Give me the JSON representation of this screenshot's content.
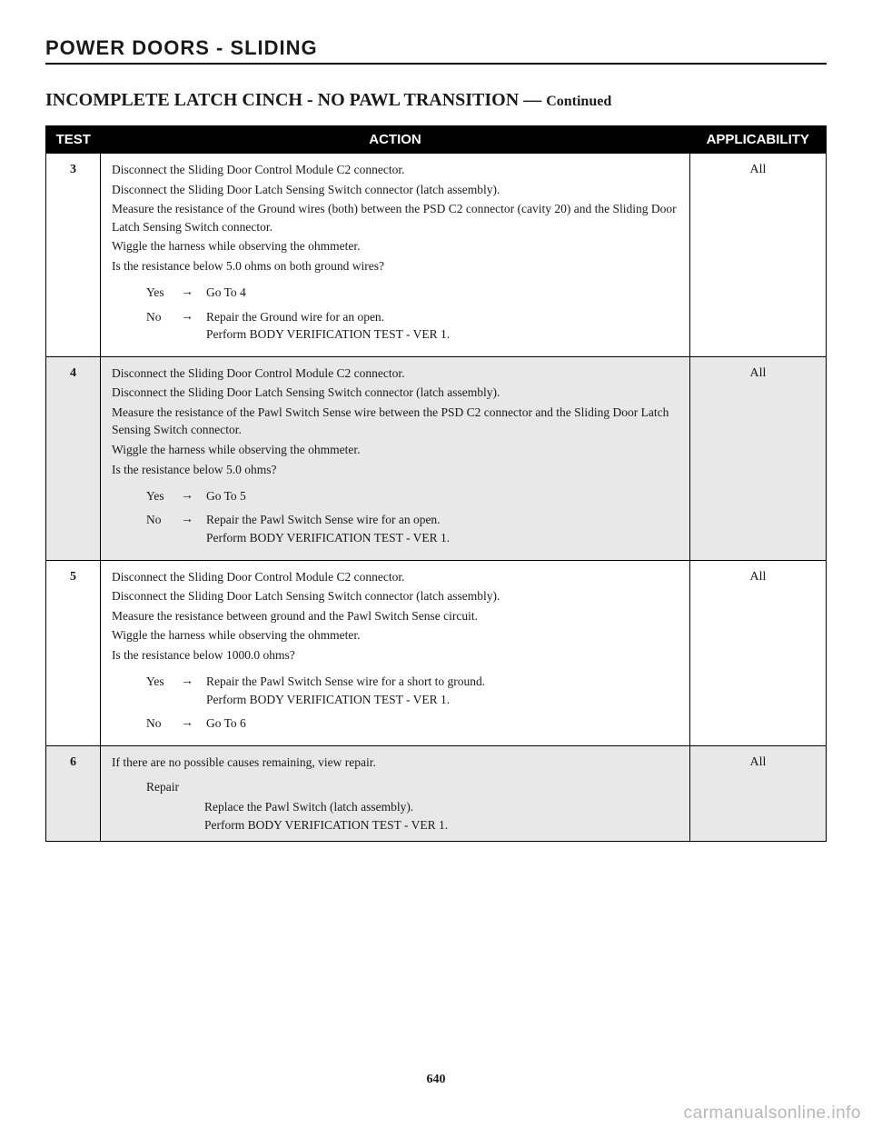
{
  "section_header": "POWER DOORS - SLIDING",
  "title_main": "INCOMPLETE LATCH CINCH - NO PAWL TRANSITION",
  "title_sep": " — ",
  "title_continued": "Continued",
  "table": {
    "headers": {
      "test": "TEST",
      "action": "ACTION",
      "applicability": "APPLICABILITY"
    },
    "rows": [
      {
        "num": "3",
        "lines": [
          "Disconnect the Sliding Door Control Module C2 connector.",
          "Disconnect the Sliding Door Latch Sensing Switch connector (latch assembly).",
          "Measure the resistance of the Ground wires (both) between the PSD C2 connector (cavity 20) and the Sliding Door Latch Sensing Switch connector.",
          "Wiggle the harness while observing the ohmmeter.",
          "Is the resistance below 5.0 ohms on both ground wires?"
        ],
        "choices": [
          {
            "label": "Yes",
            "text": [
              "Go To   4"
            ]
          },
          {
            "label": "No",
            "text": [
              "Repair the Ground wire for an open.",
              "Perform BODY VERIFICATION TEST - VER 1."
            ]
          }
        ],
        "applicability": "All"
      },
      {
        "num": "4",
        "lines": [
          "Disconnect the Sliding Door Control Module C2 connector.",
          "Disconnect the Sliding Door Latch Sensing Switch connector (latch assembly).",
          "Measure the resistance of the Pawl Switch Sense wire between the PSD C2 connector and the Sliding Door Latch Sensing Switch connector.",
          "Wiggle the harness while observing the ohmmeter.",
          "Is the resistance below 5.0 ohms?"
        ],
        "choices": [
          {
            "label": "Yes",
            "text": [
              "Go To   5"
            ]
          },
          {
            "label": "No",
            "text": [
              "Repair the Pawl Switch Sense wire for an open.",
              "Perform BODY VERIFICATION TEST - VER 1."
            ]
          }
        ],
        "applicability": "All"
      },
      {
        "num": "5",
        "lines": [
          "Disconnect the Sliding Door Control Module C2 connector.",
          "Disconnect the Sliding Door Latch Sensing Switch connector (latch assembly).",
          "Measure the resistance between ground and the Pawl Switch Sense circuit.",
          "Wiggle the harness while observing the ohmmeter.",
          "Is the resistance below 1000.0 ohms?"
        ],
        "choices": [
          {
            "label": "Yes",
            "text": [
              "Repair the Pawl Switch Sense wire for a short to ground.",
              "Perform BODY VERIFICATION TEST - VER 1."
            ]
          },
          {
            "label": "No",
            "text": [
              "Go To   6"
            ]
          }
        ],
        "applicability": "All"
      },
      {
        "num": "6",
        "lines": [
          "If there are no possible causes remaining, view repair."
        ],
        "repair": {
          "label": "Repair",
          "text": [
            "Replace the Pawl Switch (latch assembly).",
            "Perform BODY VERIFICATION TEST - VER 1."
          ]
        },
        "applicability": "All"
      }
    ]
  },
  "page_number": "640",
  "watermark": "carmanualsonline.info",
  "arrow": "→"
}
